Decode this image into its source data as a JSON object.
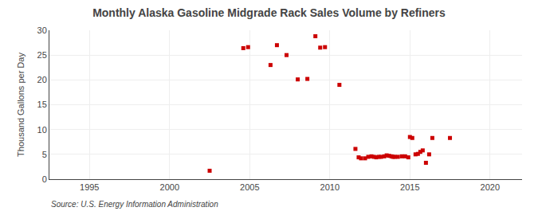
{
  "chart_data": {
    "type": "scatter",
    "title": "Monthly Alaska Gasoline Midgrade Rack Sales Volume by Refiners",
    "ylabel": "Thousand Gallons per Day",
    "source": "Source: U.S. Energy Information Administration",
    "color": "#cc0000",
    "marker": "square",
    "grid": true,
    "xlim": [
      1992.5,
      2022
    ],
    "ylim": [
      0,
      30
    ],
    "xticks": [
      1995,
      2000,
      2005,
      2010,
      2015,
      2020
    ],
    "yticks": [
      0,
      5,
      10,
      15,
      20,
      25,
      30
    ],
    "x": [
      2002.5,
      2004.6,
      2004.9,
      2006.3,
      2006.7,
      2007.3,
      2008.0,
      2008.6,
      2009.1,
      2009.4,
      2009.7,
      2010.6,
      2011.6,
      2011.8,
      2011.95,
      2012.2,
      2012.4,
      2012.6,
      2012.75,
      2012.9,
      2013.05,
      2013.2,
      2013.4,
      2013.55,
      2013.7,
      2013.85,
      2013.95,
      2014.05,
      2014.25,
      2014.5,
      2014.7,
      2014.9,
      2015.0,
      2015.15,
      2015.35,
      2015.5,
      2015.65,
      2015.8,
      2016.0,
      2016.2,
      2016.4,
      2017.5
    ],
    "values": [
      1.7,
      26.4,
      26.6,
      23.0,
      27.0,
      25.0,
      20.1,
      20.2,
      28.8,
      26.5,
      26.6,
      19.0,
      6.1,
      4.4,
      4.2,
      4.2,
      4.5,
      4.6,
      4.5,
      4.4,
      4.5,
      4.5,
      4.6,
      4.8,
      4.7,
      4.6,
      4.5,
      4.5,
      4.5,
      4.6,
      4.6,
      4.4,
      8.5,
      8.3,
      5.0,
      5.1,
      5.5,
      5.8,
      3.3,
      5.0,
      8.3,
      8.3
    ]
  }
}
